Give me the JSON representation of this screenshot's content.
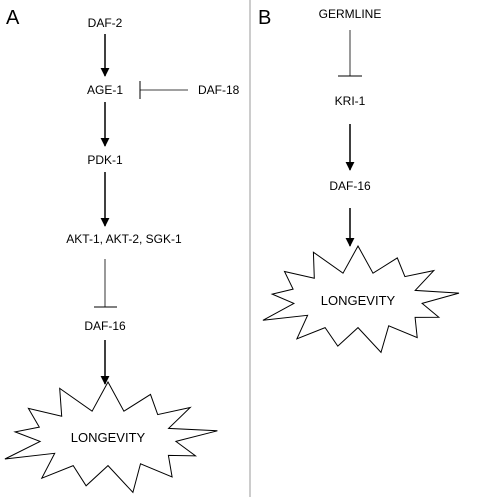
{
  "panels": {
    "a": {
      "label": "A",
      "nodes": {
        "daf2": "DAF-2",
        "age1": "AGE-1",
        "daf18": "DAF-18",
        "pdk1": "PDK-1",
        "akt": "AKT-1, AKT-2, SGK-1",
        "daf16": "DAF-16",
        "longevity": "LONGEVITY"
      }
    },
    "b": {
      "label": "B",
      "nodes": {
        "germline": "GERMLINE",
        "kri1": "KRI-1",
        "daf16": "DAF-16",
        "longevity": "LONGEVITY"
      }
    }
  },
  "edges": [
    {
      "from": "DAF-2",
      "to": "AGE-1",
      "type": "activation"
    },
    {
      "from": "DAF-18",
      "to": "AGE-1",
      "type": "inhibition"
    },
    {
      "from": "AGE-1",
      "to": "PDK-1",
      "type": "activation"
    },
    {
      "from": "PDK-1",
      "to": "AKT-1, AKT-2, SGK-1",
      "type": "activation"
    },
    {
      "from": "AKT-1, AKT-2, SGK-1",
      "to": "DAF-16",
      "type": "inhibition"
    },
    {
      "from": "DAF-16",
      "to": "LONGEVITY",
      "type": "activation"
    },
    {
      "from": "GERMLINE",
      "to": "KRI-1",
      "type": "inhibition"
    },
    {
      "from": "KRI-1",
      "to": "DAF-16",
      "type": "activation"
    },
    {
      "from": "DAF-16",
      "to": "LONGEVITY",
      "type": "activation"
    }
  ]
}
